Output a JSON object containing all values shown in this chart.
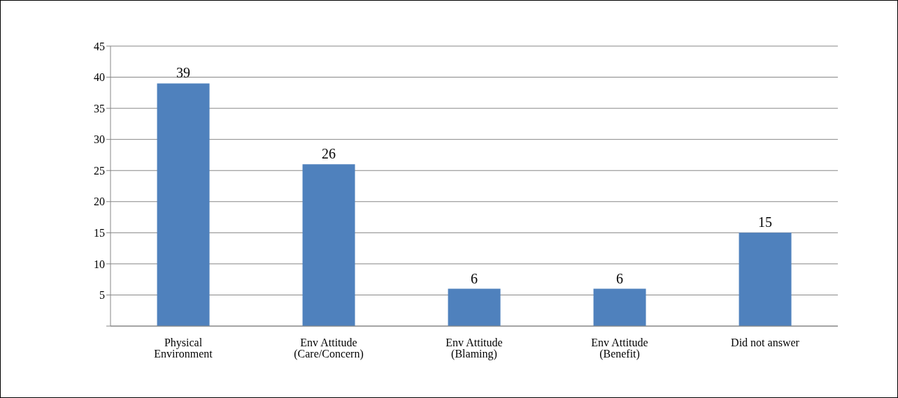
{
  "chart_data": {
    "type": "bar",
    "categories": [
      "Physical Environment",
      "Env Attitude (Care/Concern)",
      "Env Attitude (Blaming)",
      "Env Attitude (Benefit)",
      "Did not answer"
    ],
    "values": [
      39,
      26,
      6,
      6,
      15
    ],
    "color": "#4f81bd",
    "ylim": [
      0,
      45
    ],
    "yticks": [
      {
        "value": 0,
        "label": null
      },
      5,
      10,
      15,
      20,
      25,
      30,
      35,
      40,
      45
    ],
    "grid": "y",
    "data_labels": true,
    "legend": false
  }
}
